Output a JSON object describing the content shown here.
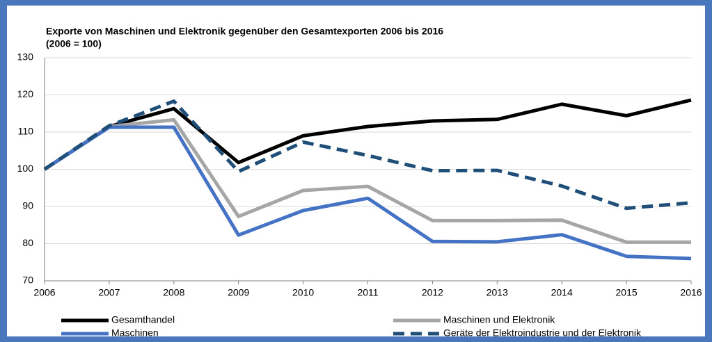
{
  "chart_data": {
    "type": "line",
    "title": "Exporte von Maschinen und Elektronik gegenüber den Gesamtexporten 2006 bis 2016",
    "subtitle": "(2006 = 100)",
    "x": [
      2006,
      2007,
      2008,
      2009,
      2010,
      2011,
      2012,
      2013,
      2014,
      2015,
      2016
    ],
    "xlim": [
      2006,
      2016
    ],
    "xticks": [
      2006,
      2007,
      2008,
      2009,
      2010,
      2011,
      2012,
      2013,
      2014,
      2015,
      2016
    ],
    "ylim": [
      70,
      130
    ],
    "yticks": [
      70,
      80,
      90,
      100,
      110,
      120,
      130
    ],
    "grid": true,
    "series": [
      {
        "name": "Gesamthandel",
        "color": "#000000",
        "style": "solid",
        "values": [
          100,
          111.5,
          116.3,
          101.8,
          109,
          111.5,
          113,
          113.4,
          117.5,
          114.4,
          118.6
        ]
      },
      {
        "name": "Maschinen und Elektronik",
        "color": "#a6a6a6",
        "style": "solid",
        "values": [
          100,
          111.5,
          113.3,
          87.3,
          94.3,
          95.4,
          86.2,
          86.2,
          86.3,
          80.4,
          80.4
        ]
      },
      {
        "name": "Maschinen",
        "color": "#4472c4",
        "style": "solid",
        "values": [
          100,
          111.3,
          111.3,
          82.3,
          88.9,
          92.2,
          80.6,
          80.5,
          82.4,
          76.6,
          76.0
        ]
      },
      {
        "name": "Geräte der Elektroindustrie und der Elektronik",
        "color": "#1f4e79",
        "style": "dashed",
        "values": [
          100,
          111.7,
          118.3,
          99.4,
          107.3,
          103.7,
          99.6,
          99.7,
          95.5,
          89.5,
          91.0
        ]
      }
    ]
  }
}
